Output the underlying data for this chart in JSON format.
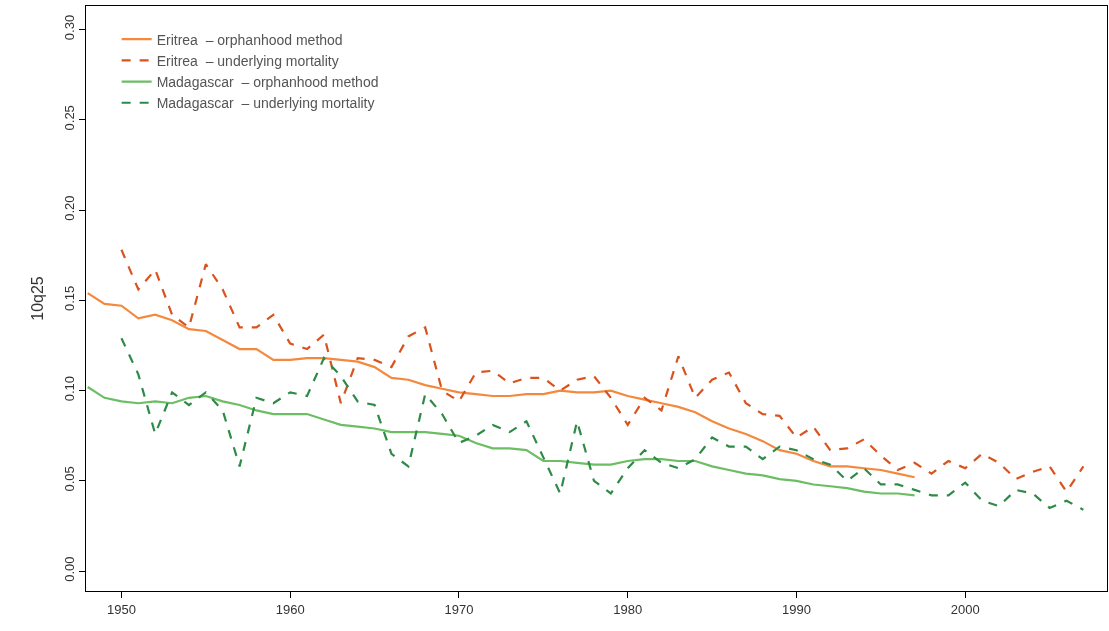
{
  "chart_data": {
    "type": "line",
    "ylabel": "10q25",
    "legend": "top left",
    "grid": false,
    "xlim": [
      1947.9,
      2008.4
    ],
    "xticks": [
      1950,
      1960,
      1970,
      1980,
      1990,
      2000
    ],
    "ylim": [
      -0.011,
      0.313
    ],
    "yticks": [
      {
        "value": 0,
        "label": "0.00"
      },
      {
        "value": 0.05,
        "label": "0.05"
      },
      {
        "value": 0.1,
        "label": "0.10"
      },
      {
        "value": 0.15,
        "label": "0.15"
      },
      {
        "value": 0.2,
        "label": "0.20"
      },
      {
        "value": 0.25,
        "label": "0.25"
      },
      {
        "value": 0.3,
        "label": "0.30"
      }
    ],
    "series": [
      {
        "name": "Eritrea  – orphanhood method",
        "color": "#f4883c",
        "line_style": "solid",
        "x": [
          1948,
          1949,
          1950,
          1951,
          1952,
          1953,
          1954,
          1955,
          1956,
          1957,
          1958,
          1959,
          1960,
          1961,
          1962,
          1963,
          1964,
          1965,
          1966,
          1967,
          1968,
          1969,
          1970,
          1971,
          1972,
          1973,
          1974,
          1975,
          1976,
          1977,
          1978,
          1979,
          1980,
          1981,
          1982,
          1983,
          1984,
          1985,
          1986,
          1987,
          1988,
          1989,
          1990,
          1991,
          1992,
          1993,
          1994,
          1995,
          1996,
          1997
        ],
        "values": [
          0.154,
          0.148,
          0.147,
          0.14,
          0.142,
          0.139,
          0.134,
          0.133,
          0.128,
          0.123,
          0.123,
          0.117,
          0.117,
          0.118,
          0.118,
          0.117,
          0.116,
          0.113,
          0.107,
          0.106,
          0.103,
          0.101,
          0.099,
          0.098,
          0.097,
          0.097,
          0.098,
          0.098,
          0.1,
          0.099,
          0.099,
          0.1,
          0.097,
          0.095,
          0.093,
          0.091,
          0.088,
          0.083,
          0.079,
          0.076,
          0.072,
          0.067,
          0.065,
          0.061,
          0.058,
          0.058,
          0.057,
          0.056,
          0.054,
          0.052
        ]
      },
      {
        "name": "Eritrea  – underlying mortality",
        "color": "#d9531e",
        "line_style": "dashed",
        "x": [
          1950,
          1951,
          1952,
          1953,
          1954,
          1955,
          1956,
          1957,
          1958,
          1959,
          1960,
          1961,
          1962,
          1963,
          1964,
          1965,
          1966,
          1967,
          1968,
          1969,
          1970,
          1971,
          1972,
          1973,
          1974,
          1975,
          1976,
          1977,
          1978,
          1979,
          1980,
          1981,
          1982,
          1983,
          1984,
          1985,
          1986,
          1987,
          1988,
          1989,
          1990,
          1991,
          1992,
          1993,
          1994,
          1995,
          1996,
          1997,
          1998,
          1999,
          2000,
          2001,
          2002,
          2003,
          2004,
          2005,
          2006,
          2007
        ],
        "values": [
          0.178,
          0.156,
          0.167,
          0.142,
          0.135,
          0.17,
          0.156,
          0.135,
          0.135,
          0.142,
          0.126,
          0.123,
          0.131,
          0.093,
          0.118,
          0.117,
          0.113,
          0.13,
          0.135,
          0.1,
          0.094,
          0.11,
          0.111,
          0.104,
          0.107,
          0.107,
          0.1,
          0.106,
          0.108,
          0.096,
          0.081,
          0.096,
          0.089,
          0.119,
          0.096,
          0.106,
          0.11,
          0.093,
          0.087,
          0.086,
          0.074,
          0.08,
          0.067,
          0.068,
          0.073,
          0.064,
          0.056,
          0.06,
          0.054,
          0.061,
          0.057,
          0.065,
          0.06,
          0.051,
          0.055,
          0.058,
          0.044,
          0.058
        ]
      },
      {
        "name": "Madagascar  – orphanhood method",
        "color": "#6cbd63",
        "line_style": "solid",
        "x": [
          1948,
          1949,
          1950,
          1951,
          1952,
          1953,
          1954,
          1955,
          1956,
          1957,
          1958,
          1959,
          1960,
          1961,
          1962,
          1963,
          1964,
          1965,
          1966,
          1967,
          1968,
          1969,
          1970,
          1971,
          1972,
          1973,
          1974,
          1975,
          1976,
          1977,
          1978,
          1979,
          1980,
          1981,
          1982,
          1983,
          1984,
          1985,
          1986,
          1987,
          1988,
          1989,
          1990,
          1991,
          1992,
          1993,
          1994,
          1995,
          1996,
          1997
        ],
        "values": [
          0.102,
          0.096,
          0.094,
          0.093,
          0.094,
          0.093,
          0.096,
          0.097,
          0.094,
          0.092,
          0.089,
          0.087,
          0.087,
          0.087,
          0.084,
          0.081,
          0.08,
          0.079,
          0.077,
          0.077,
          0.077,
          0.076,
          0.075,
          0.071,
          0.068,
          0.068,
          0.067,
          0.061,
          0.061,
          0.06,
          0.059,
          0.059,
          0.061,
          0.062,
          0.062,
          0.061,
          0.061,
          0.058,
          0.056,
          0.054,
          0.053,
          0.051,
          0.05,
          0.048,
          0.047,
          0.046,
          0.044,
          0.043,
          0.043,
          0.042
        ]
      },
      {
        "name": "Madagascar  – underlying mortality",
        "color": "#2e8b47",
        "line_style": "dashed",
        "x": [
          1950,
          1951,
          1952,
          1953,
          1954,
          1955,
          1956,
          1957,
          1958,
          1959,
          1960,
          1961,
          1962,
          1963,
          1964,
          1965,
          1966,
          1967,
          1968,
          1969,
          1970,
          1971,
          1972,
          1973,
          1974,
          1975,
          1976,
          1977,
          1978,
          1979,
          1980,
          1981,
          1982,
          1983,
          1984,
          1985,
          1986,
          1987,
          1988,
          1989,
          1990,
          1991,
          1992,
          1993,
          1994,
          1995,
          1996,
          1997,
          1998,
          1999,
          2000,
          2001,
          2002,
          2003,
          2004,
          2005,
          2006,
          2007
        ],
        "values": [
          0.129,
          0.109,
          0.076,
          0.099,
          0.092,
          0.099,
          0.089,
          0.058,
          0.096,
          0.093,
          0.099,
          0.097,
          0.118,
          0.108,
          0.094,
          0.092,
          0.065,
          0.058,
          0.098,
          0.087,
          0.071,
          0.075,
          0.081,
          0.077,
          0.083,
          0.063,
          0.043,
          0.083,
          0.05,
          0.043,
          0.057,
          0.067,
          0.06,
          0.057,
          0.062,
          0.074,
          0.069,
          0.069,
          0.062,
          0.069,
          0.067,
          0.062,
          0.059,
          0.05,
          0.057,
          0.048,
          0.048,
          0.045,
          0.042,
          0.042,
          0.049,
          0.039,
          0.036,
          0.045,
          0.043,
          0.035,
          0.039,
          0.034
        ]
      }
    ]
  }
}
